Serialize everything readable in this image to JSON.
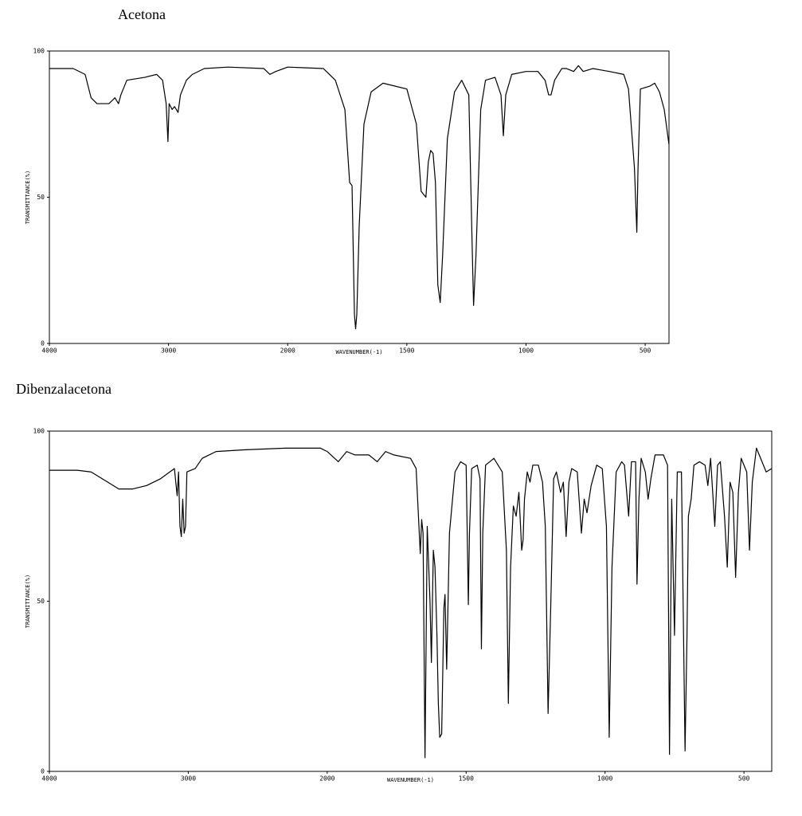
{
  "chart_data": [
    {
      "type": "line",
      "title": "Acetona",
      "x_label": "WAVENUMBER(-1)",
      "y_label": "TRANSMITTANCE(%)",
      "xlim": [
        4000,
        400
      ],
      "x_scale_change": {
        "at": 2000,
        "factor": 2
      },
      "ylim": [
        0,
        100
      ],
      "xticks": [
        4000,
        3000,
        2000,
        1500,
        1000,
        500
      ],
      "yticks": [
        0,
        50,
        100
      ],
      "color": "#000000",
      "x": [
        4000,
        3800,
        3700,
        3650,
        3600,
        3500,
        3450,
        3420,
        3400,
        3350,
        3200,
        3100,
        3050,
        3020,
        3005,
        2995,
        2970,
        2950,
        2920,
        2900,
        2850,
        2800,
        2700,
        2500,
        2200,
        2150,
        2100,
        2000,
        1850,
        1800,
        1760,
        1740,
        1730,
        1720,
        1715,
        1710,
        1700,
        1680,
        1650,
        1600,
        1500,
        1460,
        1440,
        1420,
        1410,
        1400,
        1390,
        1380,
        1370,
        1360,
        1350,
        1330,
        1300,
        1270,
        1240,
        1225,
        1220,
        1210,
        1190,
        1170,
        1130,
        1105,
        1095,
        1085,
        1060,
        1000,
        950,
        920,
        905,
        895,
        880,
        850,
        830,
        800,
        780,
        760,
        720,
        650,
        590,
        570,
        545,
        535,
        530,
        520,
        480,
        460,
        440,
        420,
        400
      ],
      "values": [
        94,
        94,
        92,
        84,
        82,
        82,
        84,
        82,
        85,
        90,
        91,
        92,
        90,
        82,
        69,
        82,
        80,
        81,
        79,
        85,
        90,
        92,
        94,
        94.5,
        94,
        92,
        93,
        94.5,
        94,
        90,
        80,
        55,
        54,
        10,
        5,
        10,
        40,
        75,
        86,
        89,
        87,
        75,
        52,
        50,
        62,
        66,
        65,
        55,
        20,
        14,
        30,
        70,
        86,
        90,
        85,
        30,
        13,
        30,
        80,
        90,
        91,
        85,
        71,
        85,
        92,
        93,
        93,
        90,
        85,
        85,
        90,
        94,
        94,
        93,
        95,
        93,
        94,
        93,
        92,
        87,
        60,
        38,
        60,
        87,
        88,
        89,
        86,
        80,
        68
      ]
    },
    {
      "type": "line",
      "title": "Dibenzalacetona",
      "x_label": "WAVENUMBER(-1)",
      "y_label": "TRANSMITTANCE(%)",
      "xlim": [
        4000,
        400
      ],
      "x_scale_change": {
        "at": 2000,
        "factor": 2
      },
      "ylim": [
        0,
        100
      ],
      "xticks": [
        4000,
        3000,
        2000,
        1500,
        1000,
        500
      ],
      "yticks": [
        0,
        50,
        100
      ],
      "color": "#000000",
      "x": [
        4000,
        3800,
        3700,
        3600,
        3500,
        3400,
        3300,
        3200,
        3100,
        3080,
        3070,
        3060,
        3050,
        3040,
        3030,
        3020,
        3010,
        2950,
        2900,
        2800,
        2600,
        2300,
        2050,
        2000,
        1960,
        1930,
        1900,
        1850,
        1820,
        1790,
        1760,
        1700,
        1680,
        1665,
        1660,
        1655,
        1648,
        1640,
        1630,
        1625,
        1618,
        1612,
        1605,
        1600,
        1595,
        1588,
        1580,
        1576,
        1570,
        1560,
        1540,
        1520,
        1500,
        1495,
        1492,
        1488,
        1480,
        1460,
        1450,
        1445,
        1440,
        1430,
        1400,
        1370,
        1355,
        1348,
        1340,
        1330,
        1320,
        1310,
        1300,
        1295,
        1290,
        1280,
        1270,
        1260,
        1240,
        1225,
        1215,
        1205,
        1195,
        1185,
        1175,
        1160,
        1150,
        1140,
        1130,
        1120,
        1100,
        1085,
        1075,
        1065,
        1050,
        1030,
        1010,
        995,
        985,
        975,
        960,
        940,
        930,
        915,
        905,
        890,
        885,
        878,
        870,
        855,
        845,
        835,
        820,
        790,
        775,
        768,
        760,
        750,
        740,
        725,
        712,
        705,
        700,
        690,
        680,
        660,
        640,
        630,
        620,
        605,
        595,
        585,
        570,
        560,
        550,
        540,
        530,
        520,
        510,
        490,
        480,
        470,
        455,
        440,
        420,
        400
      ],
      "values": [
        88.5,
        88.5,
        88,
        85.5,
        83,
        83,
        84,
        86,
        89,
        81,
        88,
        72,
        69,
        80,
        70,
        72,
        88,
        89,
        92,
        94,
        94.5,
        95,
        95,
        94,
        91,
        94,
        93,
        93,
        91,
        94,
        93,
        92,
        89,
        64,
        74,
        70,
        4,
        72,
        50,
        32,
        65,
        60,
        40,
        20,
        10,
        11,
        48,
        52,
        30,
        70,
        88,
        91,
        90,
        65,
        49,
        70,
        89,
        90,
        86,
        36,
        70,
        90,
        92,
        88,
        65,
        20,
        60,
        78,
        75,
        82,
        65,
        68,
        80,
        88,
        85,
        90,
        90,
        85,
        72,
        17,
        50,
        86,
        88,
        82,
        85,
        69,
        85,
        89,
        88,
        70,
        80,
        76,
        84,
        90,
        89,
        72,
        10,
        60,
        88,
        91,
        90,
        75,
        91,
        91,
        55,
        80,
        92,
        88,
        80,
        86,
        93,
        93,
        90,
        5,
        80,
        40,
        88,
        88,
        6,
        40,
        75,
        80,
        90,
        91,
        90,
        84,
        92,
        72,
        90,
        91,
        75,
        60,
        85,
        82,
        57,
        82,
        92,
        88,
        65,
        85,
        95,
        92,
        88,
        89
      ]
    }
  ]
}
